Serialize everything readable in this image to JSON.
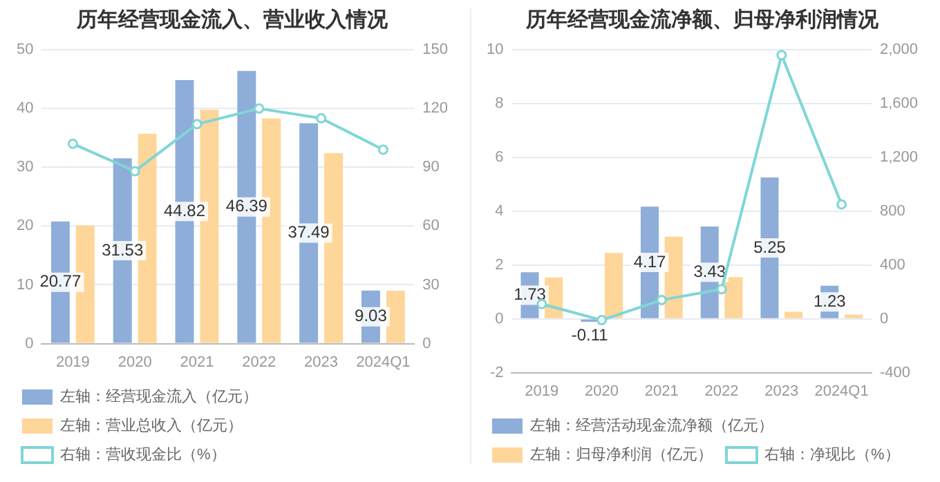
{
  "chart_data": [
    {
      "type": "bar",
      "title": "历年经营现金流入、营业收入情况",
      "categories": [
        "2019",
        "2020",
        "2021",
        "2022",
        "2023",
        "2024Q1"
      ],
      "series": [
        {
          "name": "左轴：经营现金流入（亿元）",
          "color": "#8eadd9",
          "values": [
            20.77,
            31.53,
            44.82,
            46.39,
            37.49,
            9.03
          ],
          "value_labels": [
            "20.77",
            "31.53",
            "44.82",
            "46.39",
            "37.49",
            "9.03"
          ]
        },
        {
          "name": "左轴：营业总收入（亿元）",
          "color": "#ffd699",
          "values": [
            20.1,
            35.7,
            39.8,
            38.3,
            32.4,
            9.0
          ]
        },
        {
          "name": "右轴：营收现金比（%）",
          "color": "#7fd6d6",
          "type": "line",
          "axis": "y2",
          "marker": "circle",
          "values": [
            102,
            88,
            112,
            120,
            115,
            99
          ]
        }
      ],
      "ylim": [
        0,
        50
      ],
      "yticks": [
        0,
        10,
        20,
        30,
        40,
        50
      ],
      "y2lim": [
        0,
        150
      ],
      "y2ticks": [
        0,
        30,
        60,
        90,
        120,
        150
      ],
      "grid": "y",
      "legend": "bottom"
    },
    {
      "type": "bar",
      "title": "历年经营现金流净额、归母净利润情况",
      "categories": [
        "2019",
        "2020",
        "2021",
        "2022",
        "2023",
        "2024Q1"
      ],
      "series": [
        {
          "name": "左轴：经营活动现金流净额（亿元）",
          "color": "#8eadd9",
          "values": [
            1.73,
            -0.11,
            4.17,
            3.43,
            5.25,
            1.23
          ],
          "value_labels": [
            "1.73",
            "-0.11",
            "4.17",
            "3.43",
            "5.25",
            "1.23"
          ]
        },
        {
          "name": "左轴：归母净利润（亿元）",
          "color": "#ffd699",
          "values": [
            1.54,
            2.45,
            3.05,
            1.55,
            0.26,
            0.15
          ]
        },
        {
          "name": "右轴：净现比（%）",
          "color": "#7fd6d6",
          "type": "line",
          "axis": "y2",
          "marker": "circle",
          "values": [
            110,
            -10,
            140,
            220,
            1960,
            850
          ]
        }
      ],
      "ylim": [
        -2,
        10
      ],
      "yticks": [
        -2,
        0,
        2,
        4,
        6,
        8,
        10
      ],
      "y2lim": [
        -400,
        2000
      ],
      "y2ticks": [
        -400,
        0,
        400,
        800,
        {
          "value": 1200,
          "label": "1,200"
        },
        {
          "value": 1600,
          "label": "1,600"
        },
        {
          "value": 2000,
          "label": "2,000"
        }
      ],
      "grid": "y",
      "legend": "bottom"
    }
  ]
}
